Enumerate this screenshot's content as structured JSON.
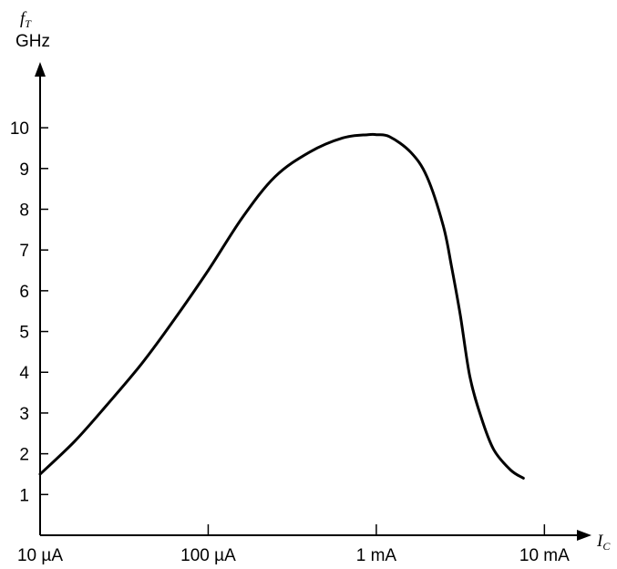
{
  "chart_data": {
    "type": "line",
    "x_scale": "log",
    "xlabel": {
      "main": "I",
      "sub": "C"
    },
    "ylabel": {
      "main": "f",
      "sub": "T",
      "unit": "GHz"
    },
    "x_ticks": [
      {
        "value": 1e-05,
        "label": "10 µA"
      },
      {
        "value": 0.0001,
        "label": "100 µA"
      },
      {
        "value": 0.001,
        "label": "1 mA"
      },
      {
        "value": 0.01,
        "label": "10 mA"
      }
    ],
    "y_ticks": [
      1,
      2,
      3,
      4,
      5,
      6,
      7,
      8,
      9,
      10
    ],
    "xlim": [
      1e-05,
      0.0162
    ],
    "ylim": [
      0,
      11.3
    ],
    "grid": false,
    "series": [
      {
        "x": [
          1e-05,
          1.6e-05,
          2.5e-05,
          4e-05,
          6.3e-05,
          0.0001,
          0.00016,
          0.00025,
          0.0004,
          0.00063,
          0.00089,
          0.001,
          0.0012,
          0.0016,
          0.002,
          0.0025,
          0.0028,
          0.00316,
          0.0036,
          0.0042,
          0.005,
          0.0063,
          0.0075
        ],
        "y": [
          1.5,
          2.3,
          3.2,
          4.2,
          5.3,
          6.5,
          7.8,
          8.8,
          9.4,
          9.75,
          9.83,
          9.83,
          9.78,
          9.4,
          8.8,
          7.6,
          6.6,
          5.4,
          3.9,
          2.9,
          2.1,
          1.6,
          1.4
        ]
      }
    ]
  }
}
